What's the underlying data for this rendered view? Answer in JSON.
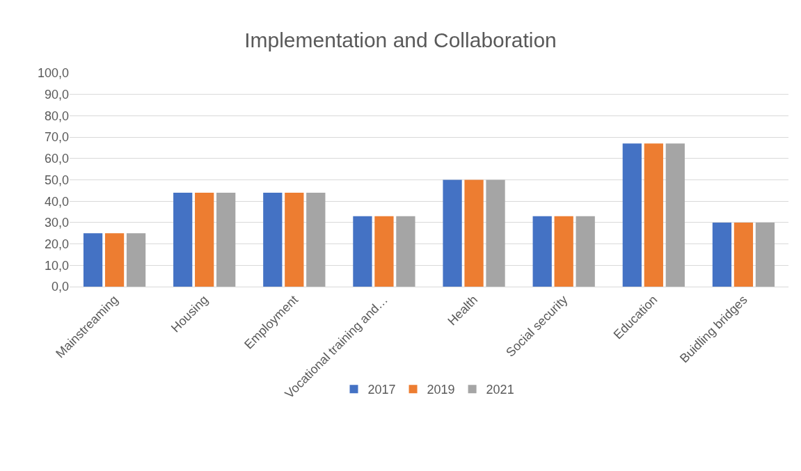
{
  "chart_data": {
    "type": "bar",
    "title": "Implementation and Collaboration",
    "categories": [
      "Mainstreaming",
      "Housing",
      "Employment",
      "Vocational training and…",
      "Health",
      "Social security",
      "Education",
      "Buidling bridges"
    ],
    "series": [
      {
        "name": "2017",
        "color": "#4472c4",
        "values": [
          25,
          44,
          44,
          33,
          50,
          33,
          67,
          30
        ]
      },
      {
        "name": "2019",
        "color": "#ed7d31",
        "values": [
          25,
          44,
          44,
          33,
          50,
          33,
          67,
          30
        ]
      },
      {
        "name": "2021",
        "color": "#a5a5a5",
        "values": [
          25,
          44,
          44,
          33,
          50,
          33,
          67,
          30
        ]
      }
    ],
    "ylim": [
      0,
      100
    ],
    "yticks": [
      {
        "value": 0,
        "label": "0,0"
      },
      {
        "value": 10,
        "label": "10,0"
      },
      {
        "value": 20,
        "label": "20,0"
      },
      {
        "value": 30,
        "label": "30,0"
      },
      {
        "value": 40,
        "label": "40,0"
      },
      {
        "value": 50,
        "label": "50,0"
      },
      {
        "value": 60,
        "label": "60,0"
      },
      {
        "value": 70,
        "label": "70,0"
      },
      {
        "value": 80,
        "label": "80,0"
      },
      {
        "value": 90,
        "label": "90,0"
      },
      {
        "value": 100,
        "label": "100,0"
      }
    ],
    "grid": "y",
    "legend": "bottom"
  }
}
